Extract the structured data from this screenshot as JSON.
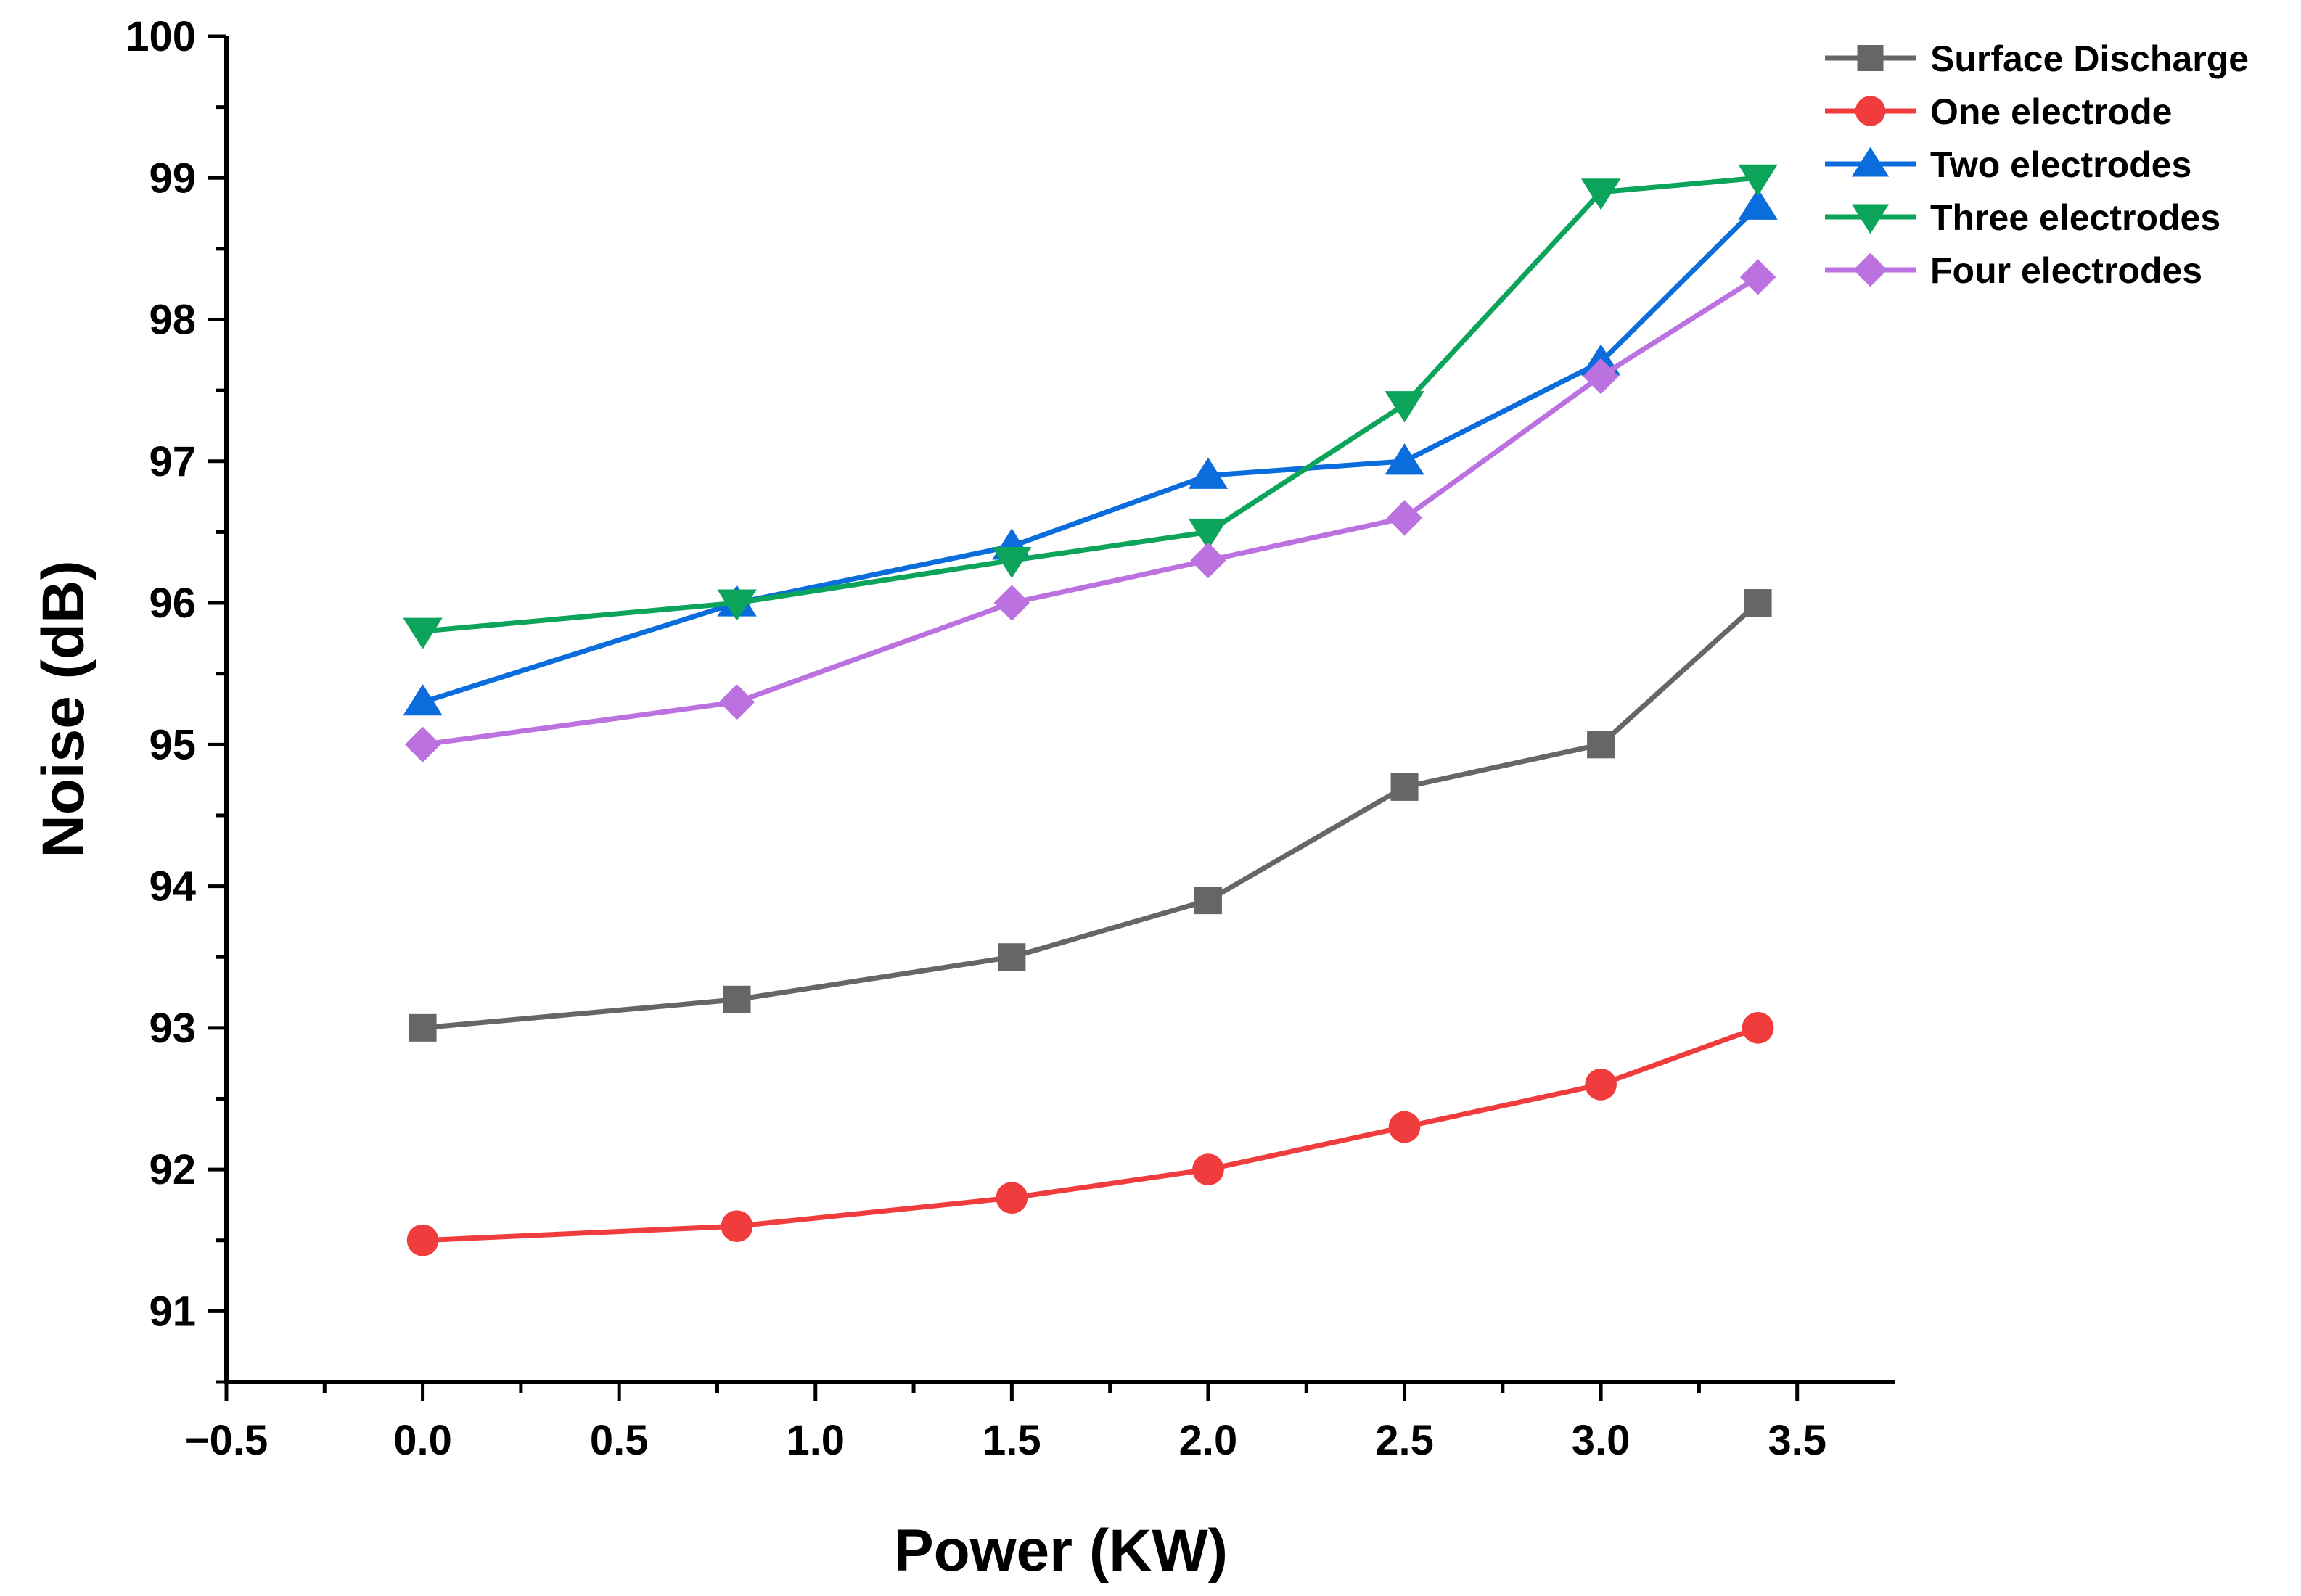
{
  "chart_data": {
    "type": "line",
    "xlabel": "Power (KW)",
    "ylabel": "Noise (dB)",
    "xlim": [
      -0.5,
      3.75
    ],
    "ylim": [
      90.5,
      100
    ],
    "xticks": [
      -0.5,
      0.0,
      0.5,
      1.0,
      1.5,
      2.0,
      2.5,
      3.0,
      3.5
    ],
    "xtick_labels": [
      "−0.5",
      "0.0",
      "0.5",
      "1.0",
      "1.5",
      "2.0",
      "2.5",
      "3.0",
      "3.5"
    ],
    "yticks": [
      91,
      92,
      93,
      94,
      95,
      96,
      97,
      98,
      99,
      100
    ],
    "ytick_labels": [
      "91",
      "92",
      "93",
      "94",
      "95",
      "96",
      "97",
      "98",
      "99",
      "100"
    ],
    "grid": false,
    "legend_position": "top-right",
    "x": [
      0.0,
      0.8,
      1.5,
      2.0,
      2.5,
      3.0,
      3.4
    ],
    "series": [
      {
        "name": "Surface Discharge",
        "color": "#666666",
        "marker": "square",
        "values": [
          93.0,
          93.2,
          93.5,
          93.9,
          94.7,
          95.0,
          96.0
        ]
      },
      {
        "name": "One electrode",
        "color": "#f03c3c",
        "marker": "circle",
        "values": [
          91.5,
          91.6,
          91.8,
          92.0,
          92.3,
          92.6,
          93.0
        ]
      },
      {
        "name": "Two electrodes",
        "color": "#0b6ddb",
        "marker": "triangle-up",
        "values": [
          95.3,
          96.0,
          96.4,
          96.9,
          97.0,
          97.7,
          98.8
        ]
      },
      {
        "name": "Three electrodes",
        "color": "#0ca35a",
        "marker": "triangle-down",
        "values": [
          95.8,
          96.0,
          96.3,
          96.5,
          97.4,
          98.9,
          99.0
        ]
      },
      {
        "name": "Four electrodes",
        "color": "#bb72e0",
        "marker": "diamond",
        "values": [
          95.0,
          95.3,
          96.0,
          96.3,
          96.6,
          97.6,
          98.3
        ]
      }
    ]
  }
}
